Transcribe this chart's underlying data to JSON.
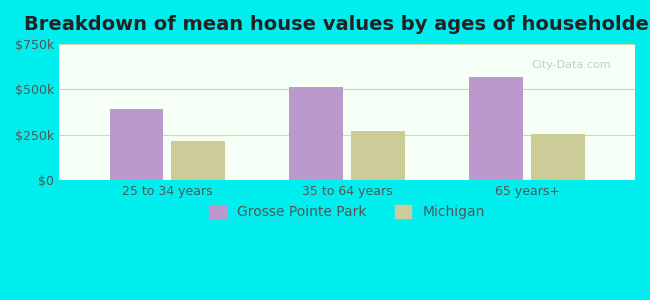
{
  "title": "Breakdown of mean house values by ages of householders",
  "categories": [
    "25 to 34 years",
    "35 to 64 years",
    "65 years+"
  ],
  "grosse_pointe_park": [
    390000,
    510000,
    570000
  ],
  "michigan": [
    215000,
    270000,
    255000
  ],
  "bar_color_gpp": "#bb99cc",
  "bar_color_mi": "#cccc99",
  "ylim": [
    0,
    750000
  ],
  "yticks": [
    0,
    250000,
    500000,
    750000
  ],
  "ytick_labels": [
    "$0",
    "$250k",
    "$500k",
    "$750k"
  ],
  "legend_gpp": "Grosse Pointe Park",
  "legend_mi": "Michigan",
  "background_outer": "#00eeee",
  "background_inner_top": "#e8f8e8",
  "background_inner_bottom": "#f8fff8",
  "grid_color": "#ddeecc",
  "title_fontsize": 14,
  "tick_fontsize": 9,
  "legend_fontsize": 10
}
